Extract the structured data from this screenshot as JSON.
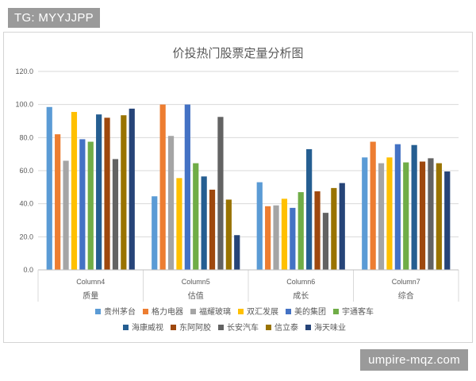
{
  "watermarks": {
    "top": "TG: MYYJJPP",
    "bottom": "umpire-mqz.com"
  },
  "chart_data": {
    "type": "bar",
    "title": "价投热门股票定量分析图",
    "categories": [
      {
        "top": "Column4",
        "bottom": "质量"
      },
      {
        "top": "Column5",
        "bottom": "估值"
      },
      {
        "top": "Column6",
        "bottom": "成长"
      },
      {
        "top": "Column7",
        "bottom": "综合"
      }
    ],
    "ylim": [
      0,
      120
    ],
    "yticks": [
      "0.0",
      "20.0",
      "40.0",
      "60.0",
      "80.0",
      "100.0",
      "120.0"
    ],
    "grid": true,
    "legend_position": "bottom",
    "series": [
      {
        "name": "贵州茅台",
        "color": "#5b9bd5",
        "values": [
          98.5,
          44.5,
          53,
          68
        ]
      },
      {
        "name": "格力电器",
        "color": "#ed7d31",
        "values": [
          82,
          100,
          38.5,
          77.5
        ]
      },
      {
        "name": "福耀玻璃",
        "color": "#a5a5a5",
        "values": [
          66,
          81,
          39,
          64.5
        ]
      },
      {
        "name": "双汇发展",
        "color": "#ffc000",
        "values": [
          95.5,
          55.5,
          43,
          68
        ]
      },
      {
        "name": "美的集团",
        "color": "#4472c4",
        "values": [
          79,
          100,
          37.5,
          76
        ]
      },
      {
        "name": "宇通客车",
        "color": "#70ad47",
        "values": [
          77.5,
          64.5,
          47,
          65
        ]
      },
      {
        "name": "海康威视",
        "color": "#255e91",
        "values": [
          94,
          56.5,
          73,
          75.5
        ]
      },
      {
        "name": "东阿阿胶",
        "color": "#9e480e",
        "values": [
          92,
          48.5,
          47.5,
          65.5
        ]
      },
      {
        "name": "长安汽车",
        "color": "#636363",
        "values": [
          67,
          92.5,
          34.5,
          67.5
        ]
      },
      {
        "name": "信立泰",
        "color": "#997300",
        "values": [
          93.5,
          42.5,
          49.5,
          64.5
        ]
      },
      {
        "name": "海天味业",
        "color": "#264478",
        "values": [
          97.5,
          21,
          52.5,
          59.5
        ]
      }
    ]
  }
}
